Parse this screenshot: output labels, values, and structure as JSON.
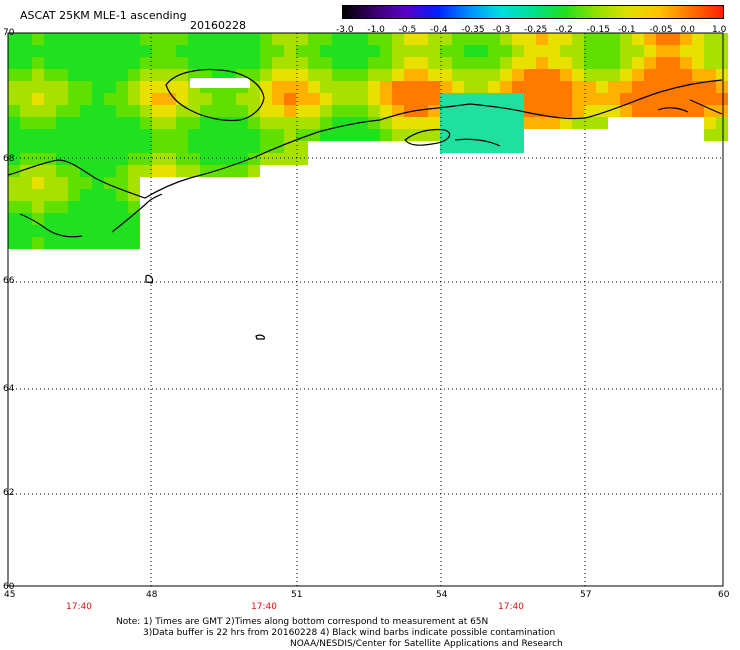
{
  "header": {
    "title": "ASCAT 25KM MLE-1 ascending",
    "date": "20160228"
  },
  "colorbar": {
    "labels": [
      "-3.0",
      "-1.0",
      "-0.5",
      "-0.4",
      "-0.35",
      "-0.3",
      "-0.25",
      "-0.2",
      "-0.15",
      "-0.1",
      "-0.05",
      "0.0",
      "1.0"
    ],
    "colors": [
      "#000000",
      "#3a0070",
      "#5a00c8",
      "#0020ff",
      "#0090ff",
      "#00e0e0",
      "#00e090",
      "#20e020",
      "#90e000",
      "#e0e000",
      "#ffc000",
      "#ff7000",
      "#ff2000"
    ]
  },
  "map": {
    "lat_labels": [
      "70",
      "68",
      "66",
      "64",
      "62",
      "60"
    ],
    "lon_labels": [
      "45",
      "48",
      "51",
      "54",
      "57",
      "60"
    ],
    "time_labels": [
      "17:40",
      "17:40",
      "17:40"
    ],
    "lat_range": [
      60,
      70
    ],
    "lon_range": [
      45,
      60
    ]
  },
  "notes": {
    "line1": "Note: 1) Times are GMT 2)Times along bottom correspond to measurement at 65N",
    "line2": "3)Data buffer is 22 hrs from 20160228 4) Black wind barbs indicate possible contamination",
    "line3": "NOAA/NESDIS/Center for Satellite Applications and Research"
  }
}
